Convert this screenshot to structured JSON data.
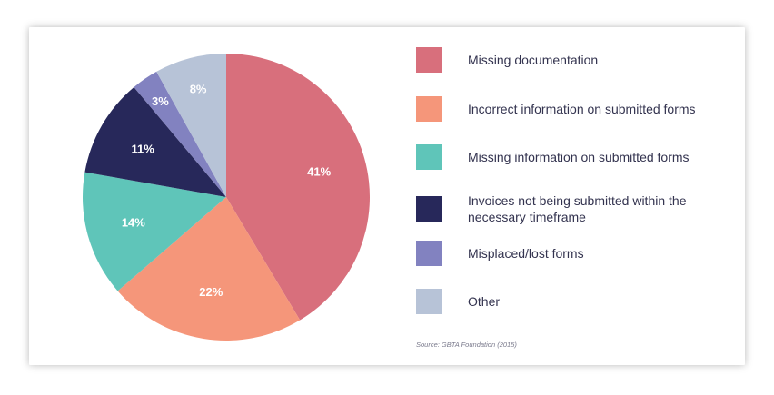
{
  "chart_data": {
    "type": "pie",
    "slices": [
      {
        "label": "Missing documentation",
        "value": 41,
        "display": "41%",
        "color": "#d86f7c"
      },
      {
        "label": "Incorrect information on submitted forms",
        "value": 22,
        "display": "22%",
        "color": "#f5967a"
      },
      {
        "label": "Missing information on submitted forms",
        "value": 14,
        "display": "14%",
        "color": "#5fc5b9"
      },
      {
        "label": "Invoices not being submitted within the necessary timeframe",
        "value": 11,
        "display": "11%",
        "color": "#27285a"
      },
      {
        "label": "Misplaced/lost forms",
        "value": 3,
        "display": "3%",
        "color": "#8282c0"
      },
      {
        "label": "Other",
        "value": 8,
        "display": "8%",
        "color": "#b7c3d7"
      }
    ],
    "start_angle": "12 o'clock",
    "direction": "clockwise",
    "legend_position": "right",
    "source": "Source: GBTA Foundation (2015)"
  }
}
